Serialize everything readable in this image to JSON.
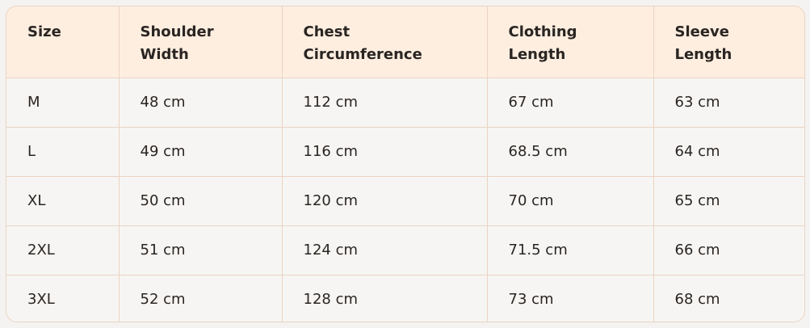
{
  "headers": [
    [
      "Size",
      ""
    ],
    [
      "Shoulder",
      "Width"
    ],
    [
      "Chest",
      "Circumference"
    ],
    [
      "Clothing",
      "Length"
    ],
    [
      "Sleeve",
      "Length"
    ]
  ],
  "rows": [
    [
      "M",
      "48 cm",
      "112 cm",
      "67 cm",
      "63 cm"
    ],
    [
      "L",
      "49 cm",
      "116 cm",
      "68.5 cm",
      "64 cm"
    ],
    [
      "XL",
      "50 cm",
      "120 cm",
      "70 cm",
      "65 cm"
    ],
    [
      "2XL",
      "51 cm",
      "124 cm",
      "71.5 cm",
      "66 cm"
    ],
    [
      "3XL",
      "52 cm",
      "128 cm",
      "73 cm",
      "68 cm"
    ]
  ],
  "colors": {
    "header_bg": "#fdeee0",
    "body_bg": "#f6f5f3",
    "border": "#ebd4c3"
  }
}
